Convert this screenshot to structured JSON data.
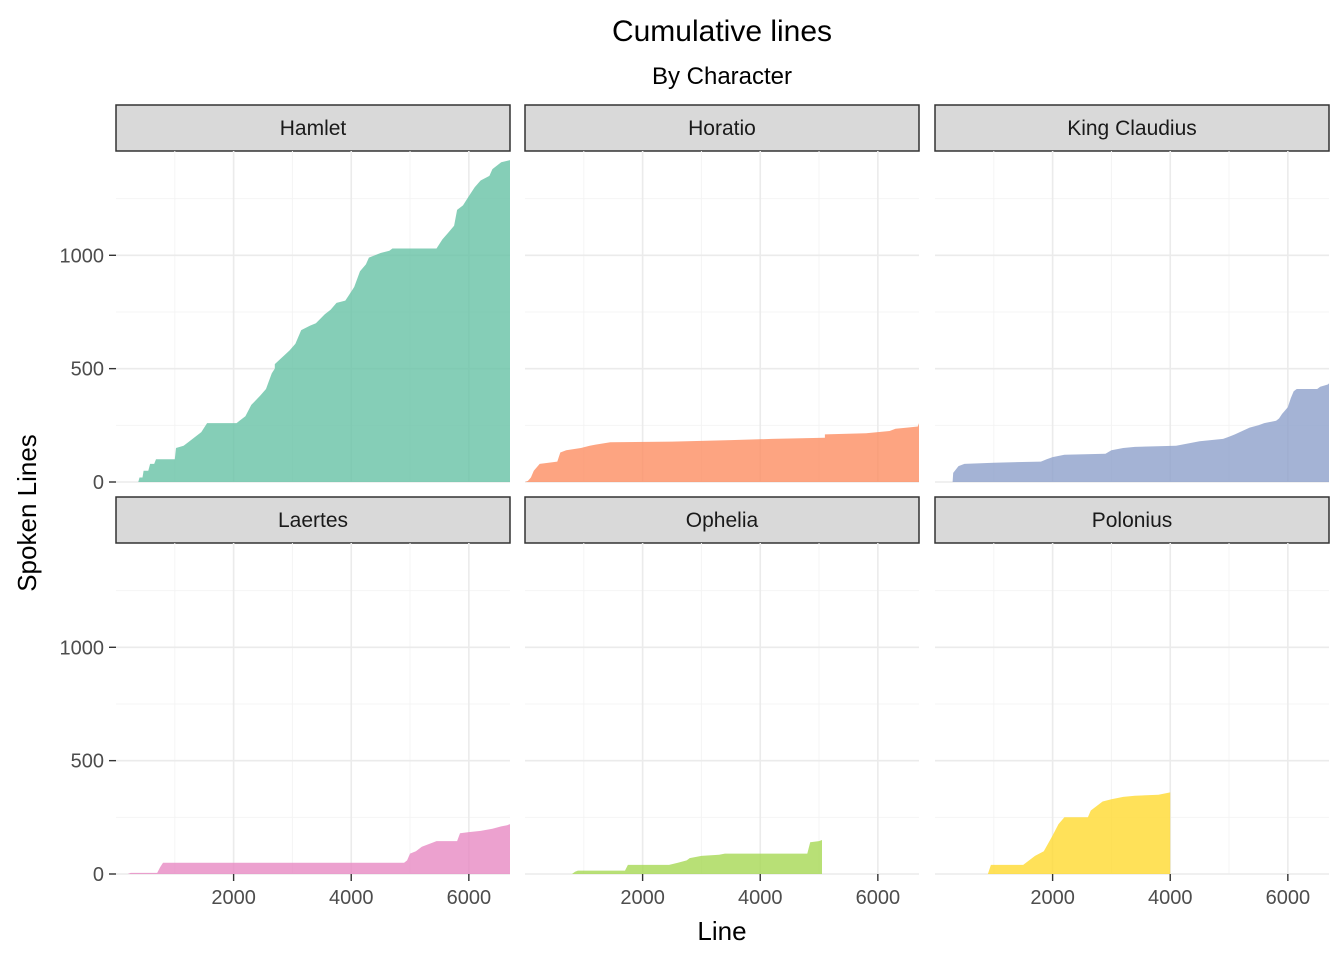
{
  "chart_data": {
    "type": "area",
    "title": "Cumulative lines",
    "subtitle": "By Character",
    "xlabel": "Line",
    "ylabel": "Spoken Lines",
    "xlim": [
      0,
      6700
    ],
    "ylim": [
      0,
      1460
    ],
    "x_ticks": [
      2000,
      4000,
      6000
    ],
    "y_ticks": [
      0,
      500,
      1000
    ],
    "grid": true,
    "facets": [
      {
        "name": "Hamlet",
        "color": "#66c2a5",
        "points": [
          [
            380,
            0
          ],
          [
            400,
            20
          ],
          [
            450,
            20
          ],
          [
            470,
            50
          ],
          [
            550,
            50
          ],
          [
            580,
            80
          ],
          [
            650,
            80
          ],
          [
            680,
            100
          ],
          [
            1000,
            100
          ],
          [
            1020,
            150
          ],
          [
            1150,
            160
          ],
          [
            1250,
            180
          ],
          [
            1450,
            220
          ],
          [
            1550,
            260
          ],
          [
            2050,
            260
          ],
          [
            2100,
            270
          ],
          [
            2200,
            290
          ],
          [
            2300,
            340
          ],
          [
            2450,
            380
          ],
          [
            2550,
            410
          ],
          [
            2650,
            480
          ],
          [
            2700,
            500
          ],
          [
            2700,
            520
          ],
          [
            2950,
            580
          ],
          [
            3050,
            610
          ],
          [
            3150,
            670
          ],
          [
            3300,
            690
          ],
          [
            3400,
            700
          ],
          [
            3550,
            740
          ],
          [
            3650,
            760
          ],
          [
            3750,
            790
          ],
          [
            3900,
            800
          ],
          [
            3950,
            820
          ],
          [
            4050,
            860
          ],
          [
            4150,
            930
          ],
          [
            4250,
            960
          ],
          [
            4300,
            990
          ],
          [
            4500,
            1010
          ],
          [
            4650,
            1020
          ],
          [
            4700,
            1030
          ],
          [
            5450,
            1030
          ],
          [
            5550,
            1070
          ],
          [
            5650,
            1100
          ],
          [
            5750,
            1130
          ],
          [
            5800,
            1200
          ],
          [
            5900,
            1220
          ],
          [
            6000,
            1260
          ],
          [
            6100,
            1300
          ],
          [
            6200,
            1330
          ],
          [
            6350,
            1350
          ],
          [
            6400,
            1380
          ],
          [
            6550,
            1410
          ],
          [
            6700,
            1420
          ]
        ]
      },
      {
        "name": "Horatio",
        "color": "#fc8d62",
        "points": [
          [
            0,
            0
          ],
          [
            50,
            5
          ],
          [
            100,
            20
          ],
          [
            150,
            50
          ],
          [
            250,
            80
          ],
          [
            550,
            90
          ],
          [
            600,
            130
          ],
          [
            700,
            140
          ],
          [
            950,
            150
          ],
          [
            1100,
            160
          ],
          [
            1200,
            165
          ],
          [
            1450,
            175
          ],
          [
            2500,
            178
          ],
          [
            3500,
            185
          ],
          [
            4200,
            190
          ],
          [
            5100,
            195
          ],
          [
            5100,
            210
          ],
          [
            5800,
            215
          ],
          [
            6200,
            225
          ],
          [
            6300,
            235
          ],
          [
            6500,
            240
          ],
          [
            6680,
            245
          ],
          [
            6700,
            260
          ]
        ]
      },
      {
        "name": "King Claudius",
        "color": "#8da0cb",
        "points": [
          [
            300,
            0
          ],
          [
            310,
            40
          ],
          [
            400,
            70
          ],
          [
            500,
            80
          ],
          [
            1000,
            85
          ],
          [
            1800,
            90
          ],
          [
            1900,
            100
          ],
          [
            2000,
            110
          ],
          [
            2200,
            120
          ],
          [
            2900,
            125
          ],
          [
            3000,
            140
          ],
          [
            3200,
            150
          ],
          [
            3400,
            155
          ],
          [
            4100,
            160
          ],
          [
            4300,
            170
          ],
          [
            4500,
            180
          ],
          [
            4900,
            190
          ],
          [
            5000,
            200
          ],
          [
            5100,
            210
          ],
          [
            5350,
            240
          ],
          [
            5500,
            250
          ],
          [
            5600,
            260
          ],
          [
            5800,
            270
          ],
          [
            5850,
            280
          ],
          [
            5900,
            300
          ],
          [
            6000,
            330
          ],
          [
            6050,
            370
          ],
          [
            6100,
            400
          ],
          [
            6150,
            410
          ],
          [
            6500,
            410
          ],
          [
            6550,
            420
          ],
          [
            6680,
            430
          ],
          [
            6700,
            435
          ]
        ]
      },
      {
        "name": "Laertes",
        "color": "#e78ac3",
        "points": [
          [
            200,
            0
          ],
          [
            250,
            5
          ],
          [
            700,
            5
          ],
          [
            750,
            30
          ],
          [
            800,
            50
          ],
          [
            4900,
            50
          ],
          [
            4950,
            60
          ],
          [
            5000,
            90
          ],
          [
            5100,
            100
          ],
          [
            5200,
            120
          ],
          [
            5300,
            130
          ],
          [
            5400,
            140
          ],
          [
            5450,
            145
          ],
          [
            5800,
            145
          ],
          [
            5850,
            180
          ],
          [
            6000,
            185
          ],
          [
            6200,
            190
          ],
          [
            6400,
            200
          ],
          [
            6550,
            210
          ],
          [
            6650,
            215
          ],
          [
            6700,
            220
          ]
        ]
      },
      {
        "name": "Ophelia",
        "color": "#a6d854",
        "points": [
          [
            800,
            0
          ],
          [
            850,
            10
          ],
          [
            900,
            15
          ],
          [
            1700,
            15
          ],
          [
            1750,
            40
          ],
          [
            2450,
            40
          ],
          [
            2600,
            50
          ],
          [
            2750,
            60
          ],
          [
            2800,
            70
          ],
          [
            3000,
            80
          ],
          [
            3300,
            85
          ],
          [
            3400,
            90
          ],
          [
            4800,
            90
          ],
          [
            4850,
            140
          ],
          [
            5000,
            145
          ],
          [
            5050,
            150
          ]
        ]
      },
      {
        "name": "Polonius",
        "color": "#ffd92f",
        "points": [
          [
            900,
            0
          ],
          [
            950,
            40
          ],
          [
            1500,
            40
          ],
          [
            1600,
            60
          ],
          [
            1700,
            80
          ],
          [
            1850,
            100
          ],
          [
            2000,
            170
          ],
          [
            2100,
            220
          ],
          [
            2200,
            250
          ],
          [
            2600,
            250
          ],
          [
            2650,
            280
          ],
          [
            2750,
            300
          ],
          [
            2850,
            320
          ],
          [
            3000,
            330
          ],
          [
            3200,
            340
          ],
          [
            3400,
            345
          ],
          [
            3800,
            350
          ],
          [
            4000,
            360
          ]
        ]
      }
    ]
  }
}
